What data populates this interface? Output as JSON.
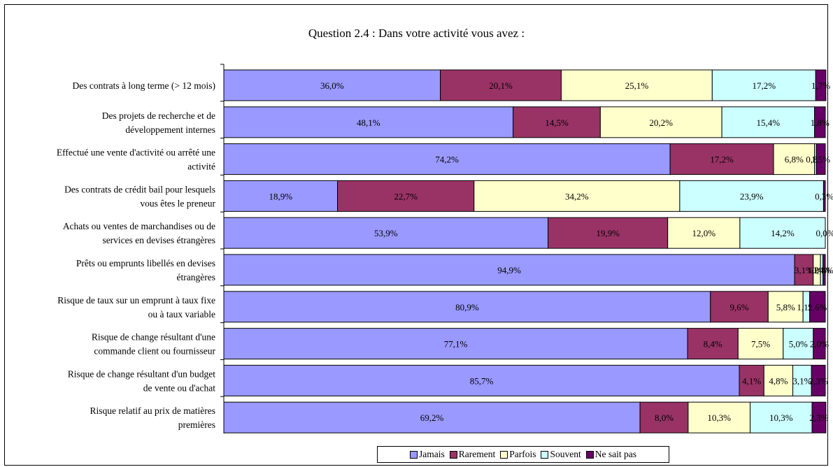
{
  "chart_data": {
    "type": "bar",
    "orientation": "horizontal-stacked-100",
    "title": "Question 2.4 : Dans votre activité vous avez :",
    "legend_position": "bottom",
    "categories": [
      "Des contrats à long terme (> 12 mois)",
      "Des projets de recherche et de développement internes",
      "Effectué une vente d'activité ou arrêté une activité",
      "Des contrats de crédit bail pour lesquels vous êtes le preneur",
      "Achats ou ventes de marchandises ou de services en devises étrangères",
      "Prêts ou emprunts libellés en devises étrangères",
      "Risque de taux sur un emprunt à taux fixe ou à taux variable",
      "Risque de change résultant d'une commande client ou fournisseur",
      "Risque de change résultant d'un budget de vente ou d'achat",
      "Risque relatif au prix de matières premières"
    ],
    "category_lines": [
      [
        "Des contrats à long terme (> 12 mois)"
      ],
      [
        "Des projets de recherche et de",
        "développement internes"
      ],
      [
        "Effectué une vente d'activité ou arrêté une",
        "activité"
      ],
      [
        "Des contrats de crédit bail pour lesquels",
        "vous êtes le preneur"
      ],
      [
        "Achats ou ventes de marchandises ou de",
        "services en devises étrangères"
      ],
      [
        "Prêts ou emprunts libellés en devises",
        "étrangères"
      ],
      [
        "Risque de taux sur un emprunt à taux fixe",
        "ou à taux variable"
      ],
      [
        "Risque de change résultant d'une",
        "commande client ou fournisseur"
      ],
      [
        "Risque de change résultant d'un budget",
        "de vente ou d'achat"
      ],
      [
        "Risque relatif au prix de matières",
        "premières"
      ]
    ],
    "series": [
      {
        "name": "Jamais",
        "color": "#9999FF",
        "values": [
          36.0,
          48.1,
          74.2,
          18.9,
          53.9,
          94.9,
          80.9,
          77.1,
          85.7,
          69.2
        ],
        "labels": [
          "36,0%",
          "48,1%",
          "74,2%",
          "18,9%",
          "53,9%",
          "94,9%",
          "80,9%",
          "77,1%",
          "85,7%",
          "69,2%"
        ]
      },
      {
        "name": "Rarement",
        "color": "#993366",
        "values": [
          20.1,
          14.5,
          17.2,
          22.7,
          19.9,
          3.1,
          9.6,
          8.4,
          4.1,
          8.0
        ],
        "labels": [
          "20,1%",
          "14,5%",
          "17,2%",
          "22,7%",
          "19,9%",
          "3,1%",
          "9,6%",
          "8,4%",
          "4,1%",
          "8,0%"
        ]
      },
      {
        "name": "Parfois",
        "color": "#FFFFCC",
        "values": [
          25.1,
          20.2,
          6.8,
          34.2,
          12.0,
          1.2,
          5.8,
          7.5,
          4.8,
          10.3
        ],
        "labels": [
          "25,1%",
          "20,2%",
          "6,8%",
          "34,2%",
          "12,0%",
          "1,2%",
          "5,8%",
          "7,5%",
          "4,8%",
          "10,3%"
        ]
      },
      {
        "name": "Souvent",
        "color": "#CCFFFF",
        "values": [
          17.2,
          15.4,
          0.3,
          23.9,
          14.2,
          0.4,
          1.1,
          5.0,
          3.1,
          10.3
        ],
        "labels": [
          "17,2%",
          "15,4%",
          "0,3%",
          "23,9%",
          "14,2%",
          "0,4%",
          "1,1%",
          "5,0%",
          "3,1%",
          "10,3%"
        ]
      },
      {
        "name": "Ne sait pas",
        "color": "#660066",
        "values": [
          1.7,
          1.8,
          1.5,
          0.3,
          0.0,
          0.4,
          2.6,
          2.0,
          2.3,
          2.3
        ],
        "labels": [
          "1,7%",
          "1,8%",
          "1,5%",
          "0,3%",
          "0,0%",
          "0,4%",
          "2,6%",
          "2,0%",
          "2,3%",
          "2,3%"
        ]
      }
    ]
  }
}
